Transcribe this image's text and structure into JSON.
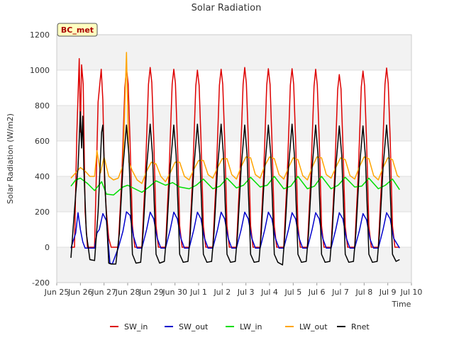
{
  "chart_data": {
    "type": "line",
    "title": "Solar Radiation",
    "xlabel": "Time",
    "ylabel": "Solar Radiation (W/m2)",
    "station_badge": "BC_met",
    "ylim": [
      -200,
      1200
    ],
    "yticks": [
      -200,
      0,
      200,
      400,
      600,
      800,
      1000,
      1200
    ],
    "xlim": [
      0,
      15
    ],
    "xtick_labels": [
      "Jun 25",
      "Jun 26",
      "Jun 27",
      "Jun 28",
      "Jun 29",
      "Jun 30",
      "Jul 1",
      "Jul 2",
      "Jul 3",
      "Jul 4",
      "Jul 5",
      "Jul 6",
      "Jul 7",
      "Jul 8",
      "Jul 9",
      "Jul 10"
    ],
    "x_unit": "days since Jun 25 00:00",
    "grid": true,
    "legend_position": "bottom",
    "series": [
      {
        "name": "SW_in",
        "color": "#dd0000",
        "x": [
          0.6,
          0.75,
          0.85,
          0.95,
          1.0,
          1.05,
          1.12,
          1.2,
          1.3,
          1.6,
          1.75,
          1.88,
          1.95,
          2.02,
          2.1,
          2.2,
          2.3,
          2.6,
          2.75,
          2.88,
          2.95,
          3.02,
          3.1,
          3.2,
          3.3,
          3.6,
          3.75,
          3.88,
          3.95,
          4.02,
          4.1,
          4.2,
          4.3,
          4.6,
          4.75,
          4.88,
          4.95,
          5.02,
          5.1,
          5.2,
          5.3,
          5.6,
          5.75,
          5.88,
          5.95,
          6.02,
          6.1,
          6.2,
          6.3,
          6.6,
          6.75,
          6.88,
          6.95,
          7.02,
          7.1,
          7.2,
          7.3,
          7.6,
          7.75,
          7.88,
          7.95,
          8.02,
          8.1,
          8.2,
          8.3,
          8.6,
          8.75,
          8.88,
          8.95,
          9.02,
          9.1,
          9.2,
          9.3,
          9.6,
          9.75,
          9.88,
          9.95,
          10.02,
          10.1,
          10.2,
          10.3,
          10.6,
          10.75,
          10.88,
          10.95,
          11.02,
          11.1,
          11.2,
          11.3,
          11.6,
          11.75,
          11.88,
          11.95,
          12.02,
          12.1,
          12.2,
          12.3,
          12.6,
          12.75,
          12.88,
          12.95,
          13.02,
          13.1,
          13.2,
          13.3,
          13.6,
          13.75,
          13.88,
          13.95,
          14.02,
          14.1,
          14.2,
          14.3,
          14.5
        ],
        "y": [
          0,
          0,
          640,
          1065,
          650,
          1030,
          920,
          200,
          0,
          0,
          820,
          1005,
          830,
          380,
          200,
          50,
          0,
          0,
          400,
          900,
          1010,
          920,
          600,
          120,
          0,
          0,
          420,
          920,
          1015,
          930,
          620,
          120,
          0,
          0,
          420,
          920,
          1005,
          925,
          610,
          120,
          0,
          0,
          410,
          910,
          1000,
          915,
          610,
          120,
          0,
          0,
          415,
          915,
          1005,
          920,
          615,
          120,
          0,
          0,
          420,
          920,
          1015,
          925,
          615,
          120,
          0,
          0,
          415,
          915,
          1008,
          920,
          610,
          120,
          0,
          0,
          415,
          915,
          1008,
          920,
          610,
          120,
          0,
          0,
          410,
          910,
          1005,
          915,
          610,
          120,
          0,
          0,
          400,
          890,
          975,
          895,
          590,
          115,
          0,
          0,
          410,
          905,
          995,
          910,
          605,
          120,
          0,
          0,
          415,
          920,
          1012,
          925,
          615,
          120,
          0,
          0
        ]
      },
      {
        "name": "SW_out",
        "color": "#0000cc",
        "x": [
          0.6,
          0.8,
          0.9,
          1.0,
          1.1,
          1.2,
          1.3,
          1.6,
          1.7,
          1.8,
          1.95,
          2.1,
          2.25,
          2.35,
          2.6,
          2.8,
          2.95,
          3.1,
          3.25,
          3.4,
          3.6,
          3.8,
          3.95,
          4.1,
          4.25,
          4.4,
          4.6,
          4.8,
          4.95,
          5.1,
          5.25,
          5.4,
          5.6,
          5.8,
          5.95,
          6.1,
          6.25,
          6.4,
          6.6,
          6.8,
          6.95,
          7.1,
          7.25,
          7.4,
          7.6,
          7.8,
          7.95,
          8.1,
          8.25,
          8.4,
          8.6,
          8.8,
          8.95,
          9.1,
          9.25,
          9.4,
          9.6,
          9.8,
          9.95,
          10.1,
          10.25,
          10.4,
          10.6,
          10.8,
          10.95,
          11.1,
          11.25,
          11.4,
          11.6,
          11.8,
          11.95,
          12.1,
          12.25,
          12.4,
          12.6,
          12.8,
          12.95,
          13.1,
          13.25,
          13.4,
          13.6,
          13.8,
          13.95,
          14.1,
          14.25,
          14.5
        ],
        "y": [
          -5,
          80,
          195,
          100,
          30,
          -5,
          -5,
          -5,
          80,
          100,
          190,
          150,
          -90,
          -95,
          -5,
          90,
          200,
          180,
          60,
          -5,
          -5,
          100,
          198,
          160,
          50,
          -5,
          -5,
          100,
          198,
          160,
          50,
          -5,
          -5,
          100,
          198,
          160,
          50,
          -5,
          -5,
          100,
          198,
          160,
          50,
          -5,
          -5,
          100,
          198,
          160,
          50,
          -5,
          -5,
          100,
          198,
          160,
          50,
          -5,
          -5,
          100,
          195,
          160,
          50,
          -5,
          -5,
          100,
          195,
          160,
          50,
          -5,
          -5,
          100,
          195,
          160,
          50,
          -5,
          -5,
          95,
          190,
          155,
          45,
          -5,
          -5,
          100,
          195,
          160,
          50,
          -5
        ]
      },
      {
        "name": "LW_in",
        "color": "#00dd00",
        "x": [
          0.6,
          0.8,
          1.0,
          1.3,
          1.6,
          1.9,
          2.1,
          2.4,
          2.8,
          3.0,
          3.3,
          3.6,
          3.9,
          4.2,
          4.6,
          4.9,
          5.2,
          5.6,
          5.9,
          6.2,
          6.6,
          6.9,
          7.2,
          7.6,
          7.9,
          8.2,
          8.6,
          8.9,
          9.2,
          9.6,
          9.9,
          10.2,
          10.6,
          10.9,
          11.2,
          11.6,
          11.9,
          12.2,
          12.6,
          12.9,
          13.2,
          13.6,
          13.9,
          14.2,
          14.5
        ],
        "y": [
          345,
          380,
          390,
          360,
          320,
          370,
          300,
          295,
          340,
          350,
          330,
          310,
          340,
          375,
          350,
          365,
          340,
          330,
          350,
          385,
          330,
          345,
          390,
          335,
          350,
          395,
          340,
          350,
          400,
          330,
          345,
          400,
          330,
          345,
          400,
          330,
          350,
          395,
          340,
          345,
          390,
          330,
          350,
          385,
          325
        ]
      },
      {
        "name": "LW_out",
        "color": "#ffa500",
        "x": [
          0.6,
          0.8,
          1.0,
          1.2,
          1.4,
          1.6,
          1.7,
          1.85,
          2.0,
          2.2,
          2.4,
          2.6,
          2.8,
          2.95,
          3.05,
          3.2,
          3.4,
          3.6,
          3.8,
          4.0,
          4.2,
          4.4,
          4.6,
          4.8,
          5.0,
          5.2,
          5.4,
          5.6,
          5.8,
          6.0,
          6.2,
          6.4,
          6.6,
          6.8,
          7.0,
          7.2,
          7.4,
          7.6,
          7.8,
          8.0,
          8.2,
          8.4,
          8.6,
          8.8,
          9.0,
          9.2,
          9.4,
          9.6,
          9.8,
          10.0,
          10.2,
          10.4,
          10.6,
          10.8,
          11.0,
          11.2,
          11.4,
          11.6,
          11.8,
          12.0,
          12.2,
          12.4,
          12.6,
          12.8,
          13.0,
          13.2,
          13.4,
          13.6,
          13.8,
          14.0,
          14.2,
          14.4,
          14.5
        ],
        "y": [
          390,
          420,
          450,
          430,
          400,
          400,
          545,
          420,
          510,
          400,
          380,
          390,
          460,
          1100,
          480,
          430,
          380,
          360,
          430,
          480,
          470,
          400,
          370,
          420,
          480,
          480,
          400,
          380,
          440,
          490,
          490,
          410,
          390,
          450,
          500,
          500,
          410,
          385,
          455,
          510,
          505,
          410,
          390,
          460,
          510,
          500,
          410,
          385,
          450,
          505,
          495,
          405,
          380,
          450,
          510,
          505,
          410,
          390,
          450,
          505,
          495,
          405,
          385,
          455,
          510,
          500,
          405,
          380,
          450,
          505,
          495,
          405,
          395
        ]
      },
      {
        "name": "Rnet",
        "color": "#000000",
        "x": [
          0.6,
          0.8,
          0.9,
          1.0,
          1.05,
          1.1,
          1.15,
          1.25,
          1.4,
          1.6,
          1.75,
          1.9,
          1.95,
          2.05,
          2.2,
          2.3,
          2.5,
          2.65,
          2.8,
          2.95,
          3.05,
          3.2,
          3.35,
          3.55,
          3.65,
          3.8,
          3.95,
          4.05,
          4.2,
          4.35,
          4.55,
          4.65,
          4.8,
          4.95,
          5.05,
          5.2,
          5.35,
          5.55,
          5.65,
          5.8,
          5.95,
          6.05,
          6.2,
          6.35,
          6.55,
          6.65,
          6.8,
          6.95,
          7.05,
          7.2,
          7.35,
          7.55,
          7.65,
          7.8,
          7.95,
          8.05,
          8.2,
          8.35,
          8.55,
          8.65,
          8.8,
          8.95,
          9.05,
          9.2,
          9.35,
          9.55,
          9.65,
          9.8,
          9.95,
          10.05,
          10.2,
          10.35,
          10.55,
          10.65,
          10.8,
          10.95,
          11.05,
          11.2,
          11.35,
          11.55,
          11.65,
          11.8,
          11.95,
          12.05,
          12.2,
          12.35,
          12.55,
          12.65,
          12.8,
          12.95,
          13.05,
          13.2,
          13.35,
          13.55,
          13.65,
          13.8,
          13.95,
          14.05,
          14.2,
          14.35,
          14.5
        ],
        "y": [
          -60,
          300,
          450,
          765,
          560,
          740,
          430,
          80,
          -70,
          -75,
          200,
          650,
          690,
          320,
          -90,
          -95,
          -95,
          80,
          450,
          690,
          520,
          -40,
          -90,
          -85,
          80,
          450,
          695,
          520,
          -40,
          -90,
          -80,
          80,
          450,
          690,
          520,
          -40,
          -85,
          -80,
          80,
          450,
          695,
          520,
          -40,
          -85,
          -80,
          80,
          450,
          695,
          520,
          -40,
          -85,
          -80,
          80,
          450,
          690,
          520,
          -40,
          -85,
          -80,
          80,
          450,
          690,
          520,
          -40,
          -85,
          -100,
          80,
          450,
          695,
          520,
          -40,
          -85,
          -80,
          80,
          450,
          690,
          520,
          -40,
          -85,
          -80,
          80,
          450,
          685,
          520,
          -40,
          -85,
          -80,
          80,
          450,
          685,
          520,
          -40,
          -85,
          -80,
          80,
          450,
          690,
          520,
          -40,
          -80,
          -70
        ]
      }
    ]
  }
}
